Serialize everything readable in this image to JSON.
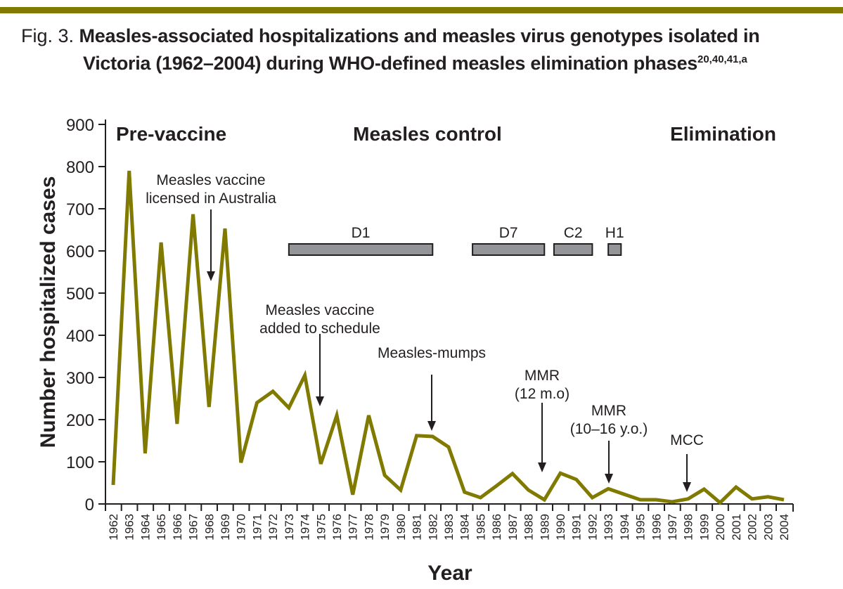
{
  "figure": {
    "label": "Fig. 3.",
    "title_line1": "Measles-associated hospitalizations and measles virus genotypes isolated in",
    "title_line2": "Victoria (1962–2004) during WHO-defined measles elimination phases",
    "title_refs": "20,40,41,a"
  },
  "colors": {
    "line": "#807a00",
    "bar_fill": "#939598",
    "rule": "#807a00"
  },
  "chart_data": {
    "type": "line",
    "xlabel": "Year",
    "ylabel": "Number hospitalized cases",
    "ylim": [
      0,
      900
    ],
    "yticks": [
      0,
      100,
      200,
      300,
      400,
      500,
      600,
      700,
      800,
      900
    ],
    "ytick_labels": [
      "0",
      "100",
      "200",
      "300",
      "400",
      "500",
      "600",
      "700",
      "800",
      "900"
    ],
    "x": [
      1962,
      1963,
      1964,
      1965,
      1966,
      1967,
      1968,
      1969,
      1970,
      1971,
      1972,
      1973,
      1974,
      1975,
      1976,
      1977,
      1978,
      1979,
      1980,
      1981,
      1982,
      1983,
      1984,
      1985,
      1986,
      1987,
      1988,
      1989,
      1990,
      1991,
      1992,
      1993,
      1994,
      1995,
      1996,
      1997,
      1998,
      1999,
      2000,
      2001,
      2002,
      2003,
      2004
    ],
    "xtick_labels": [
      "1962",
      "1963",
      "1964",
      "1965",
      "1966",
      "1967",
      "1968",
      "1969",
      "1970",
      "1971",
      "1972",
      "1973",
      "1974",
      "1975",
      "1976",
      "1977",
      "1978",
      "1979",
      "1980",
      "1981",
      "1982",
      "1983",
      "1984",
      "1985",
      "1986",
      "1987",
      "1988",
      "1989",
      "1990",
      "1991",
      "1992",
      "1993",
      "1994",
      "1995",
      "1996",
      "1997",
      "1998",
      "1999",
      "2000",
      "2001",
      "2002",
      "2003",
      "2004"
    ],
    "values": [
      45,
      790,
      120,
      620,
      190,
      687,
      230,
      653,
      98,
      240,
      267,
      228,
      305,
      95,
      210,
      22,
      210,
      68,
      33,
      162,
      160,
      135,
      28,
      15,
      43,
      72,
      33,
      10,
      73,
      58,
      15,
      36,
      23,
      10,
      10,
      5,
      12,
      35,
      3,
      40,
      12,
      17,
      10
    ],
    "grid": false,
    "phases": [
      {
        "label": "Pre-vaccine"
      },
      {
        "label": "Measles control"
      },
      {
        "label": "Elimination"
      }
    ],
    "genotypes": [
      {
        "label": "D1",
        "start": 1973,
        "end": 1982
      },
      {
        "label": "D7",
        "start": 1984.5,
        "end": 1989
      },
      {
        "label": "C2",
        "start": 1989.6,
        "end": 1992
      },
      {
        "label": "H1",
        "start": 1993,
        "end": 1993.8
      }
    ],
    "annotations": [
      {
        "lines": [
          "Measles vaccine",
          "licensed in Australia"
        ],
        "year": 1968
      },
      {
        "lines": [
          "Measles vaccine",
          "added to schedule"
        ],
        "year": 1975
      },
      {
        "lines": [
          "Measles-mumps"
        ],
        "year": 1982
      },
      {
        "lines": [
          "MMR",
          "(12 m.o)"
        ],
        "year": 1989
      },
      {
        "lines": [
          "MMR",
          "(10–16 y.o.)"
        ],
        "year": 1993
      },
      {
        "lines": [
          "MCC"
        ],
        "year": 1998
      }
    ]
  }
}
